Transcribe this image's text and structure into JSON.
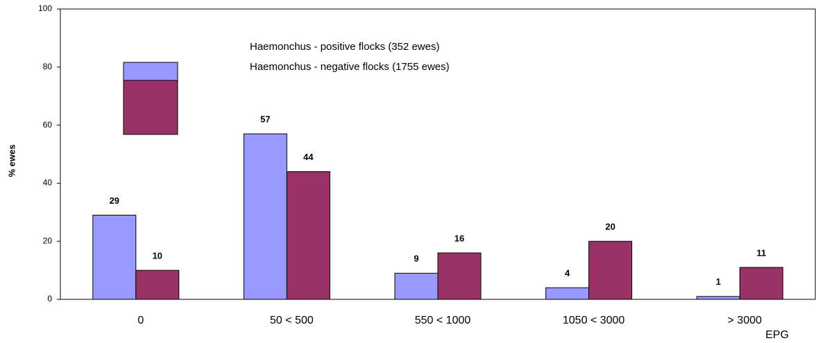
{
  "chart_data": {
    "type": "bar",
    "categories": [
      "0",
      "50 <  500",
      "550 < 1000",
      "1050 < 3000",
      "> 3000"
    ],
    "series": [
      {
        "name": "Haemonchus - positive flocks (352 ewes)",
        "color": "#9999ff",
        "values": [
          29,
          57,
          9,
          4,
          1
        ]
      },
      {
        "name": "Haemonchus - negative flocks (1755 ewes)",
        "color": "#993366",
        "values": [
          10,
          44,
          16,
          20,
          11
        ]
      }
    ],
    "xlabel": "EPG",
    "ylabel": "% ewes",
    "ylim": [
      0,
      100
    ],
    "yticks": [
      0,
      20,
      40,
      60,
      80,
      100
    ],
    "grid": false
  }
}
